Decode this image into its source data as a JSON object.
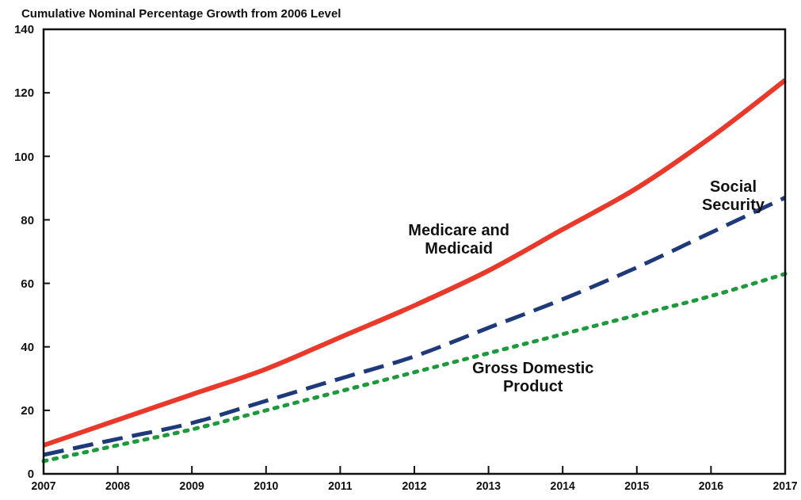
{
  "chart_data": {
    "type": "line",
    "title": "Cumulative Nominal Percentage Growth from 2006 Level",
    "x": [
      2007,
      2008,
      2009,
      2010,
      2011,
      2012,
      2013,
      2014,
      2015,
      2016,
      2017
    ],
    "series": [
      {
        "name": "Medicare and Medicaid",
        "color": "#e8392a",
        "line_style": "solid",
        "values": [
          9,
          17,
          25,
          33,
          43,
          53,
          64,
          77,
          90,
          106,
          124
        ]
      },
      {
        "name": "Social Security",
        "color": "#1f3a7a",
        "line_style": "dashed",
        "values": [
          6,
          11,
          16,
          23,
          30,
          37,
          46,
          55,
          65,
          76,
          87
        ]
      },
      {
        "name": "Gross Domestic Product",
        "color": "#1e9a3c",
        "line_style": "dotted",
        "values": [
          4,
          9,
          14,
          20,
          26,
          32,
          38,
          44,
          50,
          56,
          63
        ]
      }
    ],
    "xlim": [
      2007,
      2017
    ],
    "xticks": [
      2007,
      2008,
      2009,
      2010,
      2011,
      2012,
      2013,
      2014,
      2015,
      2016,
      2017
    ],
    "ylim": [
      0,
      140
    ],
    "yticks": [
      0,
      20,
      40,
      60,
      80,
      100,
      120,
      140
    ],
    "grid": false,
    "marker": "none"
  }
}
